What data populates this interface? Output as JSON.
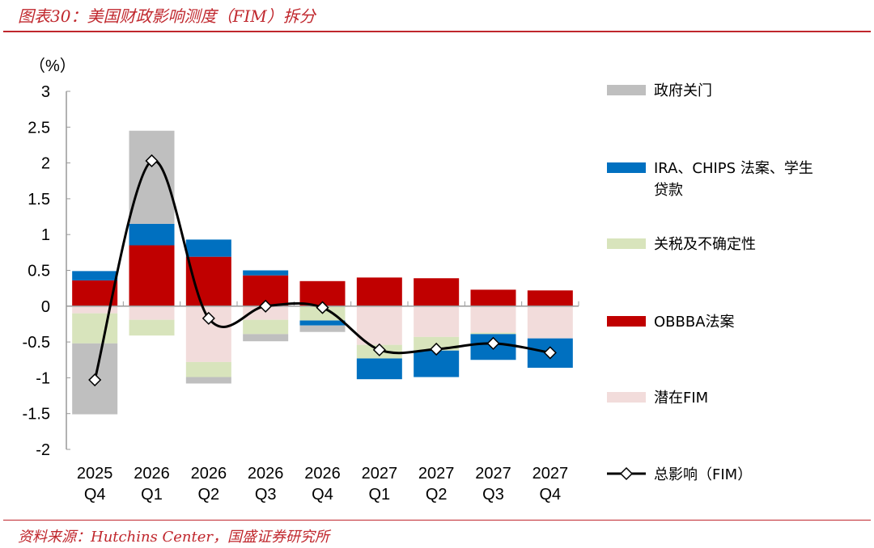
{
  "title": "图表30：美国财政影响测度（FIM）拆分",
  "source": "资料来源：Hutchins Center，国盛证券研究所",
  "chart_data": {
    "type": "bar",
    "stacked": true,
    "unit_label": "（%）",
    "ylim": [
      -2,
      3
    ],
    "yticks": [
      "3",
      "2.5",
      "2",
      "1.5",
      "1",
      "0.5",
      "0",
      "-0.5",
      "-1",
      "-1.5",
      "-2"
    ],
    "categories": [
      [
        "2025",
        "Q4"
      ],
      [
        "2026",
        "Q1"
      ],
      [
        "2026",
        "Q2"
      ],
      [
        "2026",
        "Q3"
      ],
      [
        "2026",
        "Q4"
      ],
      [
        "2027",
        "Q1"
      ],
      [
        "2027",
        "Q2"
      ],
      [
        "2027",
        "Q3"
      ],
      [
        "2027",
        "Q4"
      ]
    ],
    "grid": false,
    "legend_position": "right",
    "series": [
      {
        "name": "政府关门",
        "color": "#bfbfbf",
        "pos": [
          0,
          1.3,
          0,
          0,
          0,
          0,
          0,
          0,
          0
        ],
        "neg": [
          -0.99,
          0,
          -0.09,
          -0.1,
          -0.09,
          0,
          0,
          0,
          0
        ]
      },
      {
        "name": "IRA、CHIPS 法案、学生贷款",
        "color": "#0070c0",
        "pos": [
          0.13,
          0.3,
          0.24,
          0.07,
          0,
          0,
          0,
          0,
          0
        ],
        "neg": [
          0,
          0,
          0,
          0,
          -0.07,
          -0.29,
          -0.37,
          -0.36,
          -0.41
        ]
      },
      {
        "name": "关税及不确定性",
        "color": "#d8e4bc",
        "pos": [
          0,
          0,
          0,
          0,
          0,
          0,
          0,
          0,
          0
        ],
        "neg": [
          -0.42,
          -0.22,
          -0.21,
          -0.2,
          -0.2,
          -0.19,
          -0.19,
          -0.02,
          0
        ]
      },
      {
        "name": "OBBBA法案",
        "color": "#c00000",
        "pos": [
          0.36,
          0.85,
          0.69,
          0.43,
          0.35,
          0.4,
          0.39,
          0.23,
          0.22
        ],
        "neg": [
          0,
          0,
          0,
          0,
          0,
          0,
          0,
          0,
          0
        ]
      },
      {
        "name": "潜在FIM",
        "color": "#f2dcdb",
        "pos": [
          0,
          0,
          0,
          0,
          0,
          0,
          0,
          0,
          0
        ],
        "neg": [
          -0.1,
          -0.19,
          -0.78,
          -0.19,
          0,
          -0.54,
          -0.43,
          -0.37,
          -0.45
        ]
      }
    ],
    "line": {
      "name": "总影响（FIM）",
      "color": "#000000",
      "values": [
        -1.03,
        2.03,
        -0.17,
        0.0,
        -0.02,
        -0.61,
        -0.6,
        -0.52,
        -0.65
      ]
    }
  }
}
